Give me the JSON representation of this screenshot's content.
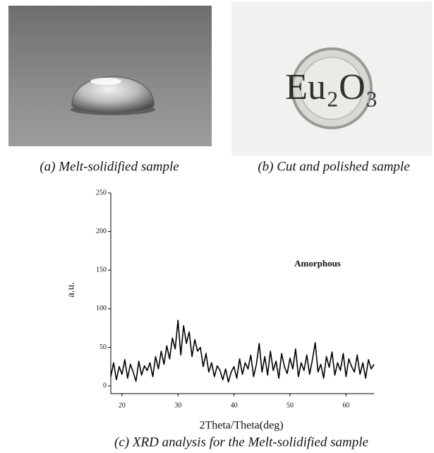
{
  "photos": [
    {
      "caption": "(a) Melt-solidified sample"
    },
    {
      "caption": "(b) Cut and polished sample",
      "text": "Eu₂O₃"
    }
  ],
  "chart_data": {
    "type": "line",
    "caption": "(c) XRD analysis for the Melt-solidified sample",
    "x_label": "2Theta/Theta(deg)",
    "y_label": "a.u.",
    "annotation": "Amorphous",
    "x": [
      18,
      18.5,
      19,
      19.5,
      20,
      20.5,
      21,
      21.5,
      22,
      22.5,
      23,
      23.5,
      24,
      24.5,
      25,
      25.5,
      26,
      26.5,
      27,
      27.5,
      28,
      28.5,
      29,
      29.5,
      30,
      30.5,
      31,
      31.5,
      32,
      32.5,
      33,
      33.5,
      34,
      34.5,
      35,
      35.5,
      36,
      36.5,
      37,
      37.5,
      38,
      38.5,
      39,
      39.5,
      40,
      40.5,
      41,
      41.5,
      42,
      42.5,
      43,
      43.5,
      44,
      44.5,
      45,
      45.5,
      46,
      46.5,
      47,
      47.5,
      48,
      48.5,
      49,
      49.5,
      50,
      50.5,
      51,
      51.5,
      52,
      52.5,
      53,
      53.5,
      54,
      54.5,
      55,
      55.5,
      56,
      56.5,
      57,
      57.5,
      58,
      58.5,
      59,
      59.5,
      60,
      60.5,
      61,
      61.5,
      62,
      62.5,
      63,
      63.5,
      64,
      64.5,
      65
    ],
    "series": [
      {
        "color": "#000000",
        "values": [
          12,
          30,
          8,
          25,
          15,
          34,
          10,
          28,
          18,
          6,
          32,
          14,
          26,
          20,
          30,
          12,
          38,
          22,
          45,
          28,
          52,
          35,
          62,
          48,
          85,
          40,
          78,
          55,
          70,
          38,
          60,
          45,
          50,
          25,
          42,
          18,
          30,
          12,
          26,
          20,
          8,
          22,
          5,
          18,
          25,
          10,
          35,
          15,
          30,
          22,
          40,
          12,
          28,
          55,
          18,
          38,
          14,
          45,
          20,
          32,
          10,
          42,
          25,
          16,
          36,
          22,
          48,
          12,
          30,
          20,
          40,
          15,
          34,
          56,
          18,
          28,
          10,
          38,
          24,
          44,
          14,
          30,
          20,
          42,
          12,
          35,
          25,
          18,
          40,
          15,
          30,
          10,
          34,
          22,
          28
        ]
      }
    ],
    "xlim": [
      18,
      65
    ],
    "xticks": [
      20,
      30,
      40,
      50,
      60
    ],
    "ylim": [
      -10,
      250
    ],
    "yticks": [
      0,
      50,
      100,
      150,
      200,
      250
    ]
  }
}
